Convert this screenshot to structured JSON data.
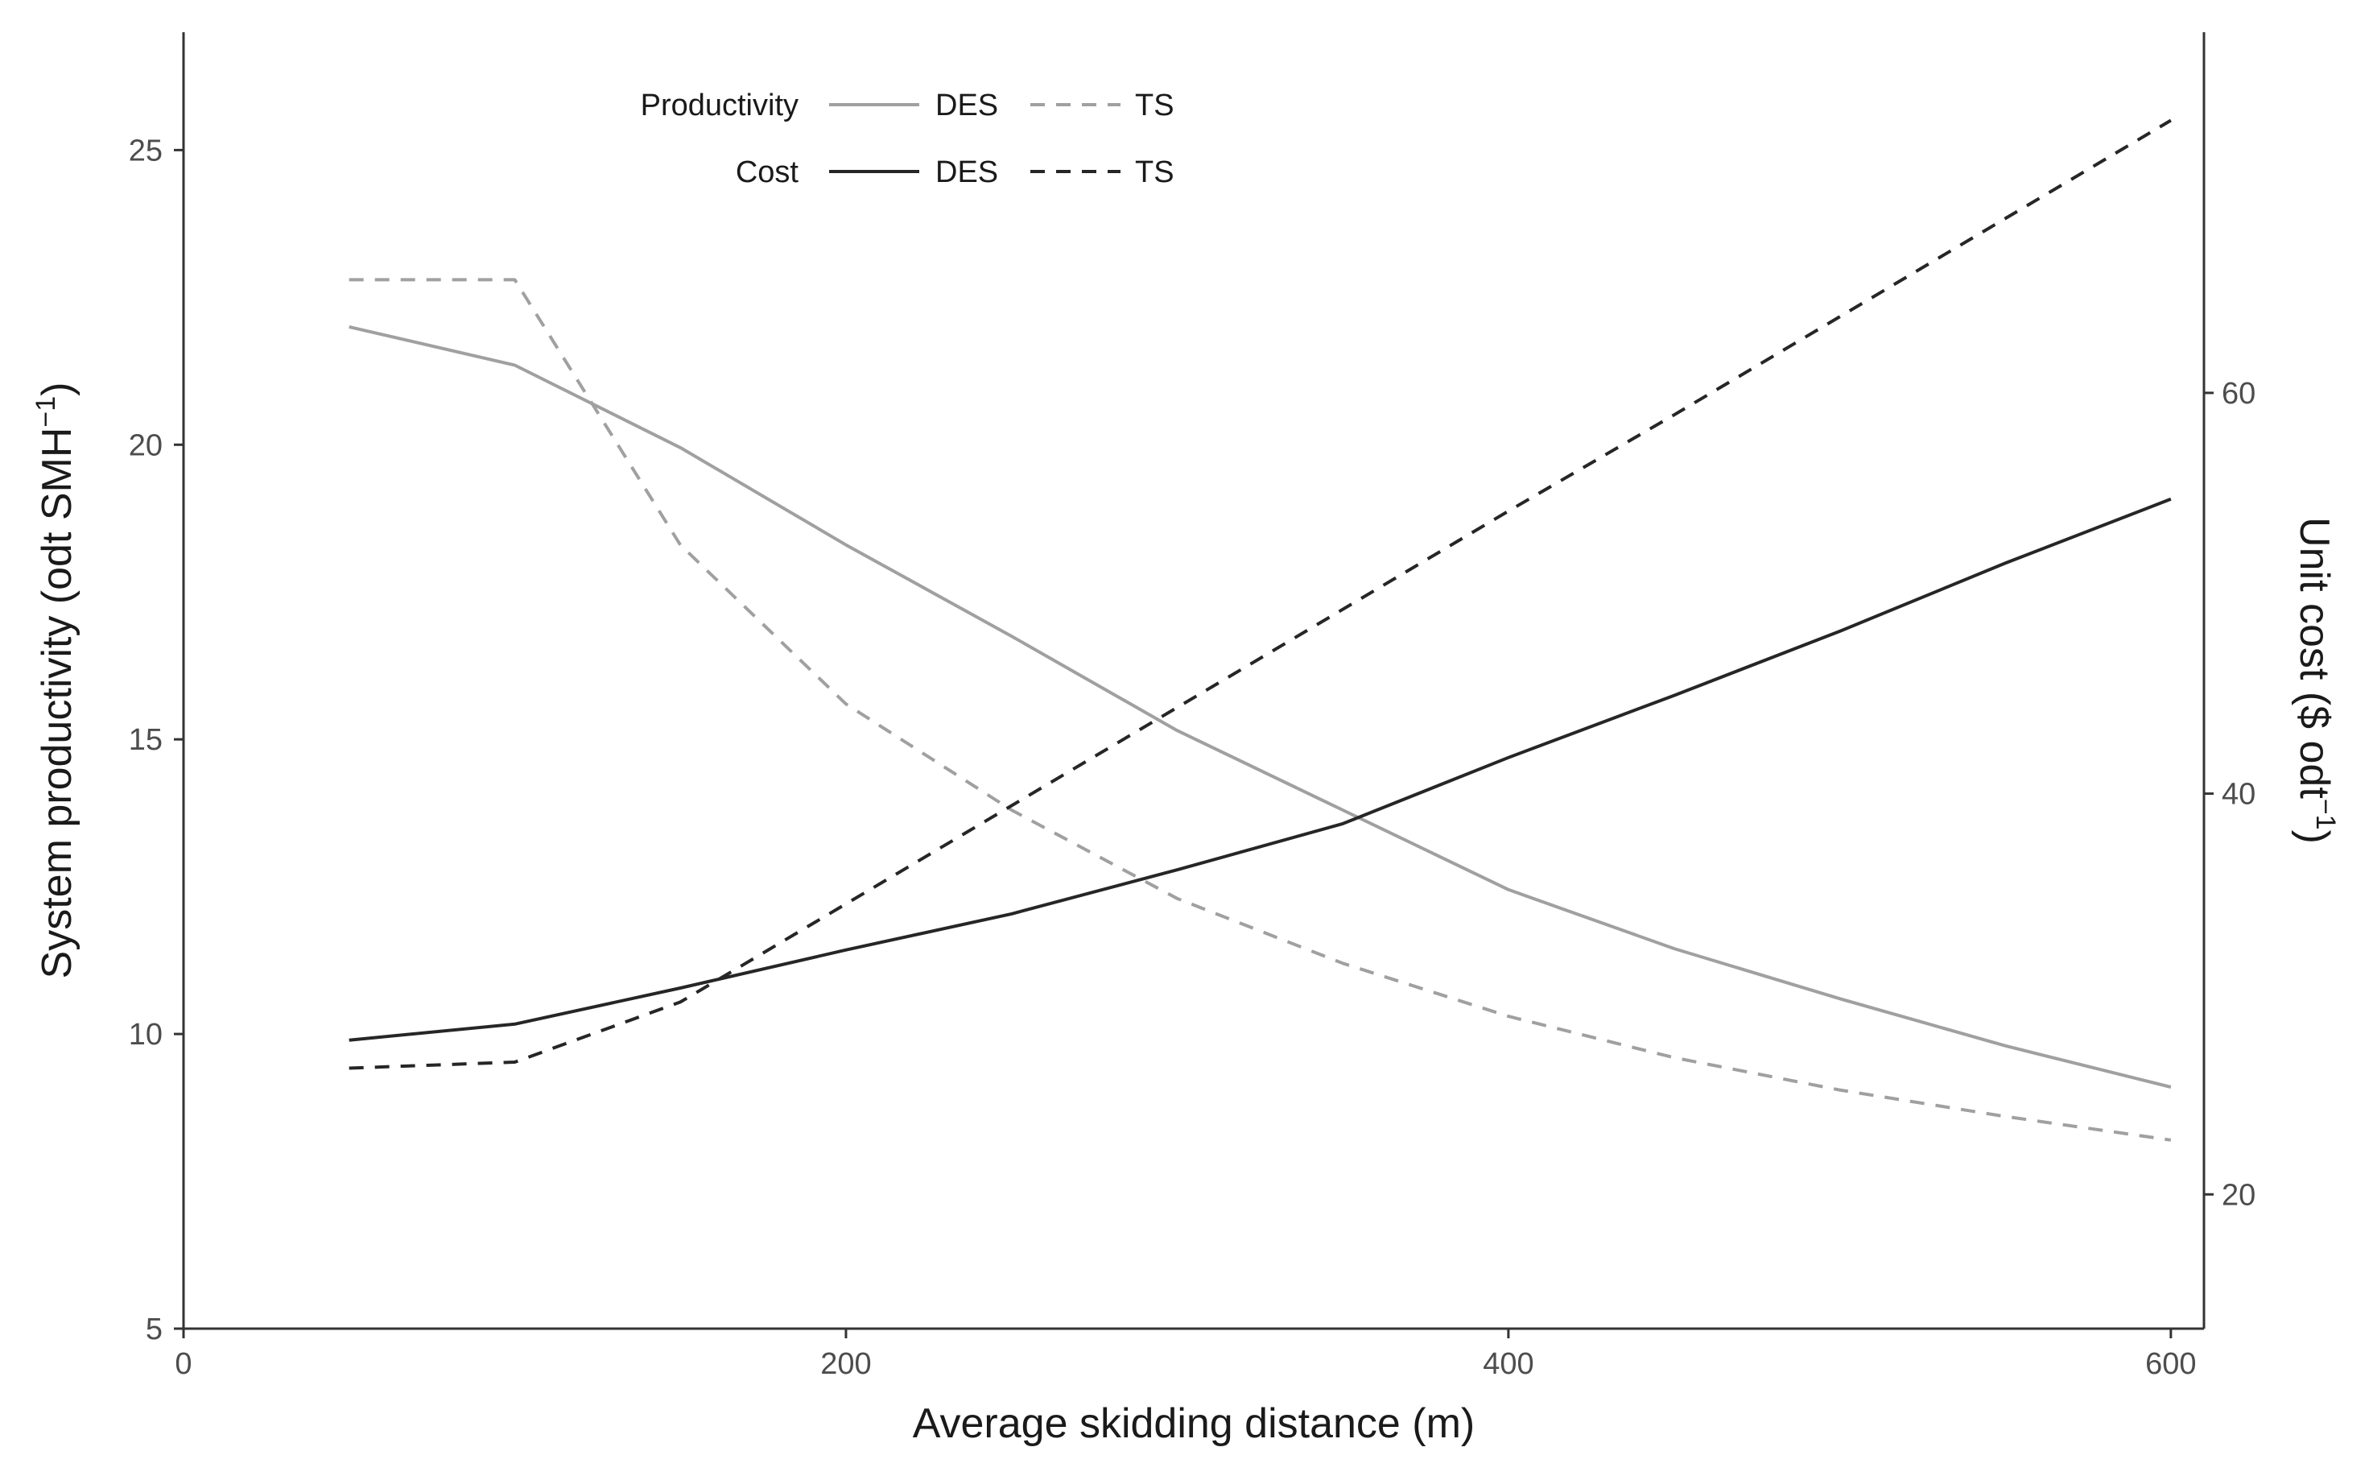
{
  "chart_data": {
    "type": "line",
    "title": "",
    "xlabel": "Average skidding distance (m)",
    "ylabel": {
      "main": "System productivity (odt SMH",
      "sup": "−1",
      "close": ")"
    },
    "y2label": {
      "main": "Unit cost ($ odt",
      "sup": "−1",
      "close": ")"
    },
    "xlim": [
      0,
      610
    ],
    "ylim": [
      5,
      27
    ],
    "y2lim": [
      13.3,
      78
    ],
    "xticks": [
      0,
      200,
      400,
      600
    ],
    "yticks": [
      5,
      10,
      15,
      20,
      25
    ],
    "y2ticks": [
      20,
      40,
      60
    ],
    "x": [
      50,
      100,
      150,
      200,
      250,
      300,
      350,
      400,
      450,
      500,
      550,
      600
    ],
    "series": [
      {
        "name": "Productivity DES",
        "axis": "left",
        "style": "solid",
        "color": "#a0a0a0",
        "values": [
          22.0,
          21.35,
          19.95,
          18.3,
          16.75,
          15.15,
          13.8,
          12.45,
          11.45,
          10.6,
          9.8,
          9.1
        ]
      },
      {
        "name": "Productivity TS",
        "axis": "left",
        "style": "dashed",
        "color": "#a0a0a0",
        "values": [
          22.8,
          22.8,
          18.3,
          15.6,
          13.8,
          12.3,
          11.2,
          10.3,
          9.6,
          9.05,
          8.6,
          8.2
        ]
      },
      {
        "name": "Cost DES",
        "axis": "right",
        "style": "solid",
        "color": "#262626",
        "values": [
          27.7,
          28.5,
          30.3,
          32.2,
          34.0,
          36.2,
          38.5,
          41.8,
          44.9,
          48.1,
          51.5,
          54.7
        ]
      },
      {
        "name": "Cost TS",
        "axis": "right",
        "style": "dashed",
        "color": "#262626",
        "values": [
          26.3,
          26.6,
          29.6,
          34.5,
          39.4,
          44.3,
          49.2,
          54.1,
          58.9,
          63.8,
          68.7,
          73.6
        ]
      }
    ],
    "legend": {
      "position": "top-left",
      "rows": [
        {
          "group": "Productivity",
          "solid_label": "DES",
          "dashed_label": "TS",
          "color": "#a0a0a0"
        },
        {
          "group": "Cost",
          "solid_label": "DES",
          "dashed_label": "TS",
          "color": "#262626"
        }
      ]
    }
  }
}
